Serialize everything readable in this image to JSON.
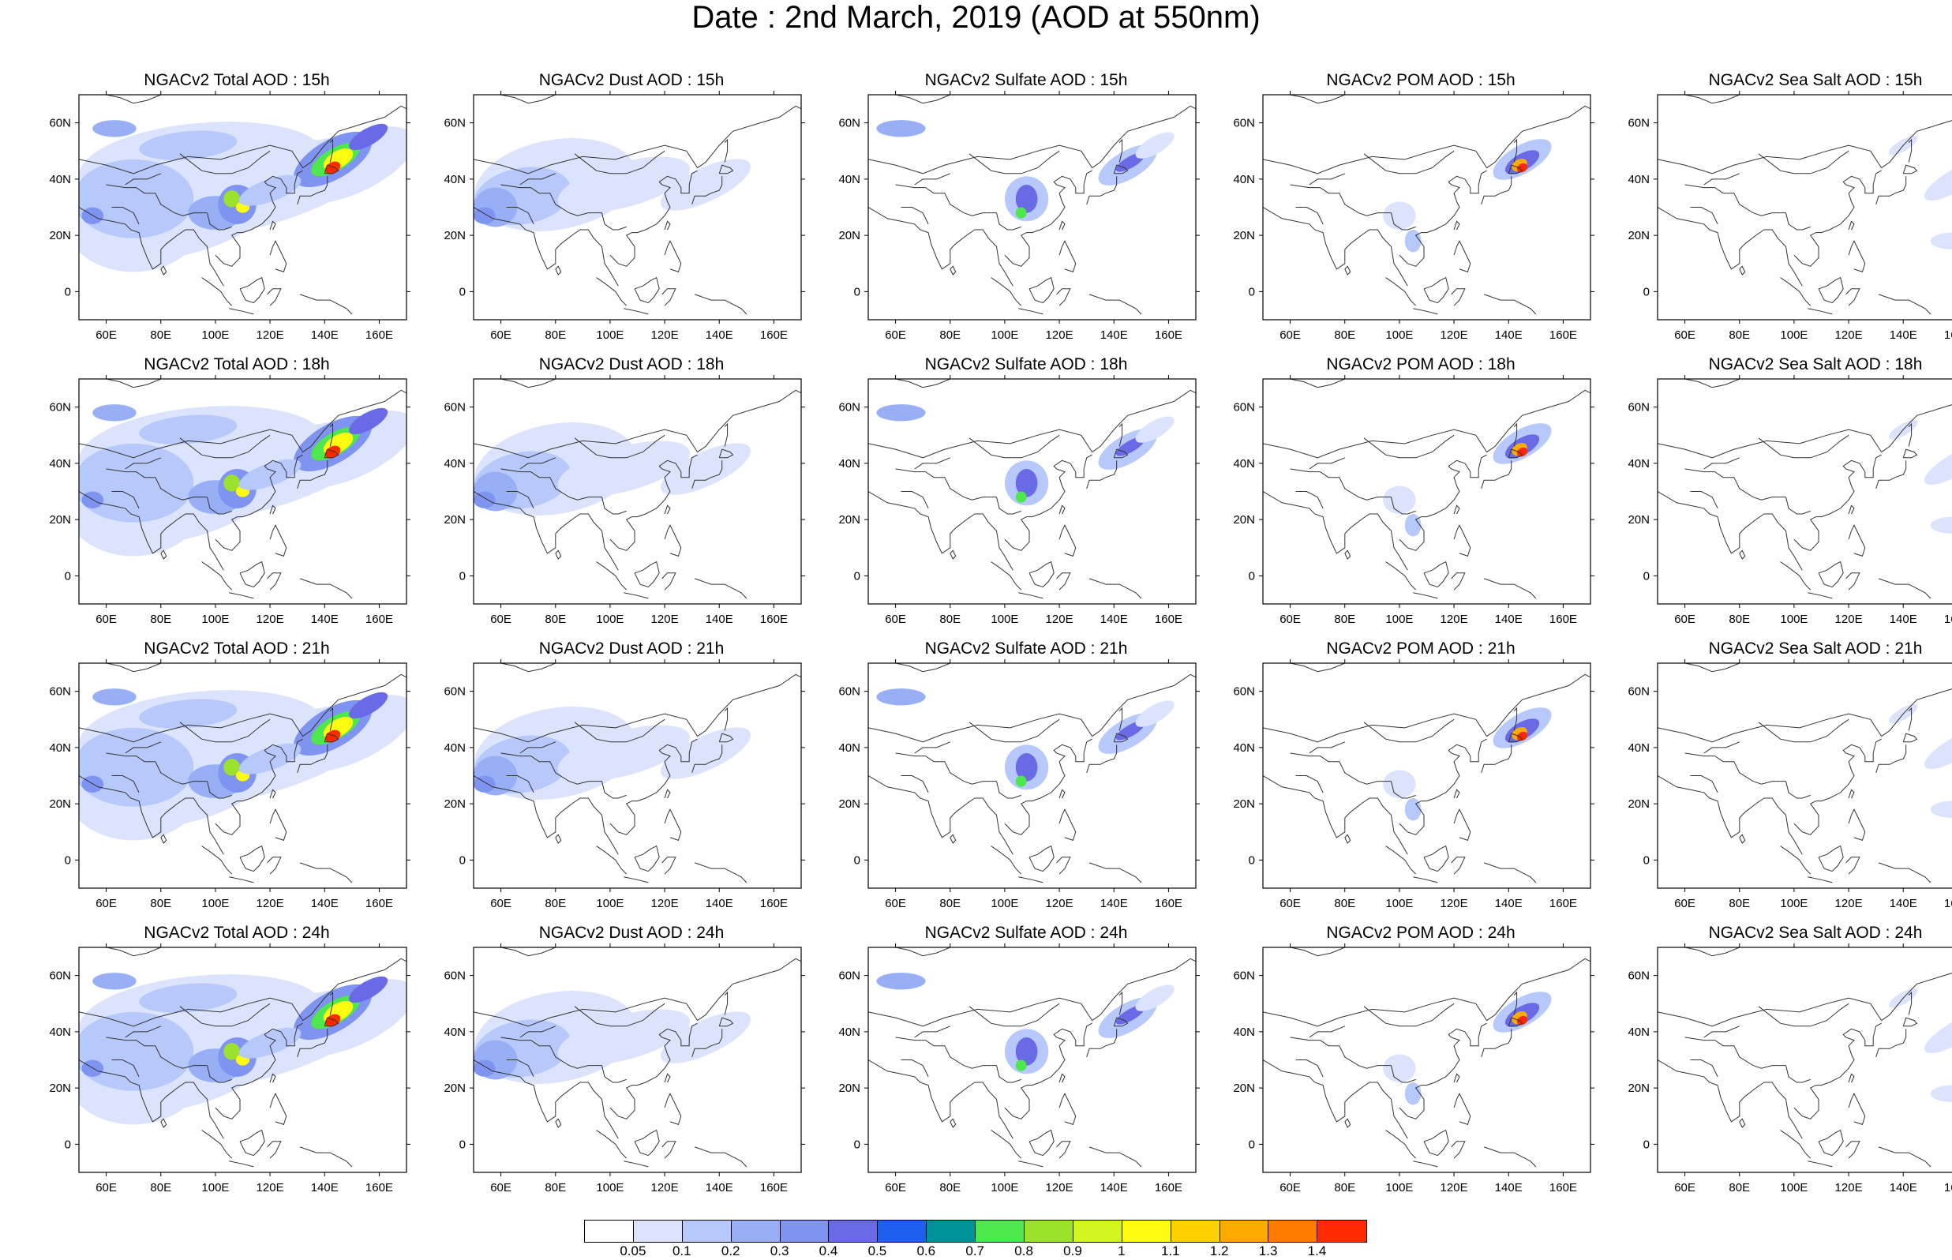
{
  "title": "Date : 2nd March, 2019 (AOD at 550nm)",
  "panel_titles": [
    [
      "NGACv2 Total AOD : 15h",
      "NGACv2 Dust AOD : 15h",
      "NGACv2 Sulfate AOD : 15h",
      "NGACv2 POM AOD : 15h",
      "NGACv2 Sea Salt AOD : 15h"
    ],
    [
      "NGACv2 Total AOD : 18h",
      "NGACv2 Dust AOD : 18h",
      "NGACv2 Sulfate AOD : 18h",
      "NGACv2 POM AOD : 18h",
      "NGACv2 Sea Salt AOD : 18h"
    ],
    [
      "NGACv2 Total AOD : 21h",
      "NGACv2 Dust AOD : 21h",
      "NGACv2 Sulfate AOD : 21h",
      "NGACv2 POM AOD : 21h",
      "NGACv2 Sea Salt AOD : 21h"
    ],
    [
      "NGACv2 Total AOD : 24h",
      "NGACv2 Dust AOD : 24h",
      "NGACv2 Sulfate AOD : 24h",
      "NGACv2 POM AOD : 24h",
      "NGACv2 Sea Salt  AOD : 24h"
    ]
  ],
  "map": {
    "lon_range": [
      50,
      170
    ],
    "lat_range": [
      -10,
      70
    ],
    "lon_ticks": [
      60,
      80,
      100,
      120,
      140,
      160
    ],
    "lon_tick_labels": [
      "60E",
      "80E",
      "100E",
      "120E",
      "140E",
      "160E"
    ],
    "lat_ticks": [
      60,
      40,
      20,
      0
    ],
    "lat_tick_labels": [
      "60N",
      "40N",
      "20N",
      "0"
    ]
  },
  "legend": {
    "labels": [
      "0.05",
      "0.1",
      "0.2",
      "0.3",
      "0.4",
      "0.5",
      "0.6",
      "0.7",
      "0.8",
      "0.9",
      "1",
      "1.1",
      "1.2",
      "1.3",
      "1.4"
    ],
    "colors": [
      "#ffffff",
      "#dbe4fc",
      "#b7c8fa",
      "#98aff5",
      "#7f93f0",
      "#6a6ae6",
      "#1f5ff0",
      "#00929a",
      "#4ce84c",
      "#9be22c",
      "#d2f520",
      "#fffc12",
      "#ffd000",
      "#ffaa00",
      "#ff7c00",
      "#ff2a00"
    ]
  },
  "coastline_color": "#333333"
}
